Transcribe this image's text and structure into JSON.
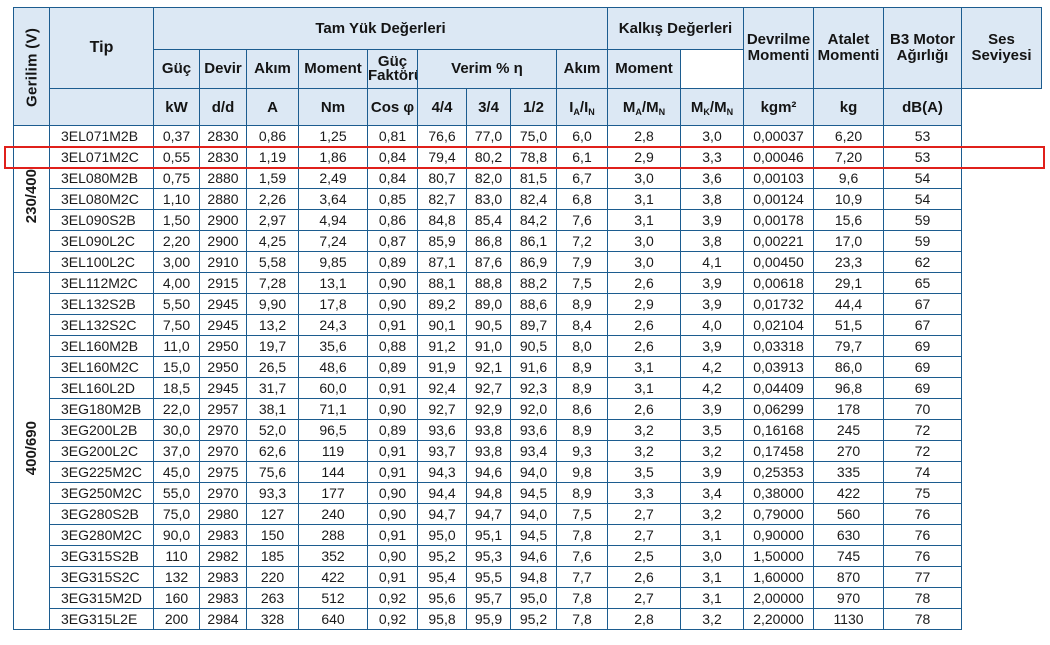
{
  "headers": {
    "voltage": "Gerilim (V)",
    "type": "Tip",
    "full_load": "Tam Yük Değerleri",
    "starting": "Kalkış Değerleri",
    "breakdown_torque": "Devrilme Momenti",
    "inertia": "Atalet Momenti",
    "weight": "B3 Motor Ağırlığı",
    "noise": "Ses Seviyesi",
    "power": "Güç",
    "speed": "Devir",
    "current": "Akım",
    "torque": "Moment",
    "power_factor": "Güç Faktörü",
    "efficiency": "Verim % η",
    "start_current": "Akım",
    "start_torque": "Moment"
  },
  "units": {
    "power": "kW",
    "speed": "d/d",
    "current": "A",
    "torque": "Nm",
    "power_factor": "Cos φ",
    "eff_full": "4/4",
    "eff_34": "3/4",
    "eff_12": "1/2",
    "start_current": {
      "main": "I",
      "sub1": "A",
      "sep": "/I",
      "sub2": "N"
    },
    "start_torque": {
      "main": "M",
      "sub1": "A",
      "sep": "/M",
      "sub2": "N"
    },
    "breakdown": {
      "main": "M",
      "sub1": "K",
      "sep": "/M",
      "sub2": "N"
    },
    "inertia": "kgm²",
    "weight": "kg",
    "noise": "dB(A)"
  },
  "groups": [
    {
      "voltage": "230/400",
      "rows": [
        [
          "3EL071M2B",
          "0,37",
          "2830",
          "0,86",
          "1,25",
          "0,81",
          "76,6",
          "77,0",
          "75,0",
          "6,0",
          "2,8",
          "3,0",
          "0,00037",
          "6,20",
          "53"
        ],
        [
          "3EL071M2C",
          "0,55",
          "2830",
          "1,19",
          "1,86",
          "0,84",
          "79,4",
          "80,2",
          "78,8",
          "6,1",
          "2,9",
          "3,3",
          "0,00046",
          "7,20",
          "53"
        ],
        [
          "3EL080M2B",
          "0,75",
          "2880",
          "1,59",
          "2,49",
          "0,84",
          "80,7",
          "82,0",
          "81,5",
          "6,7",
          "3,0",
          "3,6",
          "0,00103",
          "9,6",
          "54"
        ],
        [
          "3EL080M2C",
          "1,10",
          "2880",
          "2,26",
          "3,64",
          "0,85",
          "82,7",
          "83,0",
          "82,4",
          "6,8",
          "3,1",
          "3,8",
          "0,00124",
          "10,9",
          "54"
        ],
        [
          "3EL090S2B",
          "1,50",
          "2900",
          "2,97",
          "4,94",
          "0,86",
          "84,8",
          "85,4",
          "84,2",
          "7,6",
          "3,1",
          "3,9",
          "0,00178",
          "15,6",
          "59"
        ],
        [
          "3EL090L2C",
          "2,20",
          "2900",
          "4,25",
          "7,24",
          "0,87",
          "85,9",
          "86,8",
          "86,1",
          "7,2",
          "3,0",
          "3,8",
          "0,00221",
          "17,0",
          "59"
        ],
        [
          "3EL100L2C",
          "3,00",
          "2910",
          "5,58",
          "9,85",
          "0,89",
          "87,1",
          "87,6",
          "86,9",
          "7,9",
          "3,0",
          "4,1",
          "0,00450",
          "23,3",
          "62"
        ]
      ]
    },
    {
      "voltage": "400/690",
      "rows": [
        [
          "3EL112M2C",
          "4,00",
          "2915",
          "7,28",
          "13,1",
          "0,90",
          "88,1",
          "88,8",
          "88,2",
          "7,5",
          "2,6",
          "3,9",
          "0,00618",
          "29,1",
          "65"
        ],
        [
          "3EL132S2B",
          "5,50",
          "2945",
          "9,90",
          "17,8",
          "0,90",
          "89,2",
          "89,0",
          "88,6",
          "8,9",
          "2,9",
          "3,9",
          "0,01732",
          "44,4",
          "67"
        ],
        [
          "3EL132S2C",
          "7,50",
          "2945",
          "13,2",
          "24,3",
          "0,91",
          "90,1",
          "90,5",
          "89,7",
          "8,4",
          "2,6",
          "4,0",
          "0,02104",
          "51,5",
          "67"
        ],
        [
          "3EL160M2B",
          "11,0",
          "2950",
          "19,7",
          "35,6",
          "0,88",
          "91,2",
          "91,0",
          "90,5",
          "8,0",
          "2,6",
          "3,9",
          "0,03318",
          "79,7",
          "69"
        ],
        [
          "3EL160M2C",
          "15,0",
          "2950",
          "26,5",
          "48,6",
          "0,89",
          "91,9",
          "92,1",
          "91,6",
          "8,9",
          "3,1",
          "4,2",
          "0,03913",
          "86,0",
          "69"
        ],
        [
          "3EL160L2D",
          "18,5",
          "2945",
          "31,7",
          "60,0",
          "0,91",
          "92,4",
          "92,7",
          "92,3",
          "8,9",
          "3,1",
          "4,2",
          "0,04409",
          "96,8",
          "69"
        ],
        [
          "3EG180M2B",
          "22,0",
          "2957",
          "38,1",
          "71,1",
          "0,90",
          "92,7",
          "92,9",
          "92,0",
          "8,6",
          "2,6",
          "3,9",
          "0,06299",
          "178",
          "70"
        ],
        [
          "3EG200L2B",
          "30,0",
          "2970",
          "52,0",
          "96,5",
          "0,89",
          "93,6",
          "93,8",
          "93,6",
          "8,9",
          "3,2",
          "3,5",
          "0,16168",
          "245",
          "72"
        ],
        [
          "3EG200L2C",
          "37,0",
          "2970",
          "62,6",
          "119",
          "0,91",
          "93,7",
          "93,8",
          "93,4",
          "9,3",
          "3,2",
          "3,2",
          "0,17458",
          "270",
          "72"
        ],
        [
          "3EG225M2C",
          "45,0",
          "2975",
          "75,6",
          "144",
          "0,91",
          "94,3",
          "94,6",
          "94,0",
          "9,8",
          "3,5",
          "3,9",
          "0,25353",
          "335",
          "74"
        ],
        [
          "3EG250M2C",
          "55,0",
          "2970",
          "93,3",
          "177",
          "0,90",
          "94,4",
          "94,8",
          "94,5",
          "8,9",
          "3,3",
          "3,4",
          "0,38000",
          "422",
          "75"
        ],
        [
          "3EG280S2B",
          "75,0",
          "2980",
          "127",
          "240",
          "0,90",
          "94,7",
          "94,7",
          "94,0",
          "7,5",
          "2,7",
          "3,2",
          "0,79000",
          "560",
          "76"
        ],
        [
          "3EG280M2C",
          "90,0",
          "2983",
          "150",
          "288",
          "0,91",
          "95,0",
          "95,1",
          "94,5",
          "7,8",
          "2,7",
          "3,1",
          "0,90000",
          "630",
          "76"
        ],
        [
          "3EG315S2B",
          "110",
          "2982",
          "185",
          "352",
          "0,90",
          "95,2",
          "95,3",
          "94,6",
          "7,6",
          "2,5",
          "3,0",
          "1,50000",
          "745",
          "76"
        ],
        [
          "3EG315S2C",
          "132",
          "2983",
          "220",
          "422",
          "0,91",
          "95,4",
          "95,5",
          "94,8",
          "7,7",
          "2,6",
          "3,1",
          "1,60000",
          "870",
          "77"
        ],
        [
          "3EG315M2D",
          "160",
          "2983",
          "263",
          "512",
          "0,92",
          "95,6",
          "95,7",
          "95,0",
          "7,8",
          "2,7",
          "3,1",
          "2,00000",
          "970",
          "78"
        ],
        [
          "3EG315L2E",
          "200",
          "2984",
          "328",
          "640",
          "0,92",
          "95,8",
          "95,9",
          "95,2",
          "7,8",
          "2,8",
          "3,2",
          "2,20000",
          "1130",
          "78"
        ]
      ]
    }
  ],
  "highlighted_type": "3EL071M2C",
  "colors": {
    "header_bg": "#dce8f4",
    "grid": "#1c5c8f",
    "highlight": "#e0201b"
  }
}
